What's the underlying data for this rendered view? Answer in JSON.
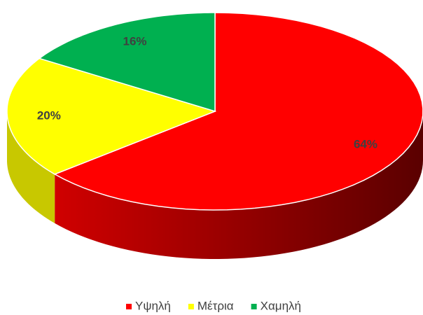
{
  "chart_data": {
    "type": "pie",
    "categories": [
      "Υψηλή",
      "Μέτρια",
      "Χαμηλή"
    ],
    "values": [
      64,
      20,
      16
    ],
    "value_labels": [
      "64%",
      "20%",
      "16%"
    ],
    "colors": [
      "#ff0000",
      "#ffff00",
      "#00b050"
    ],
    "legend": "bottom"
  }
}
